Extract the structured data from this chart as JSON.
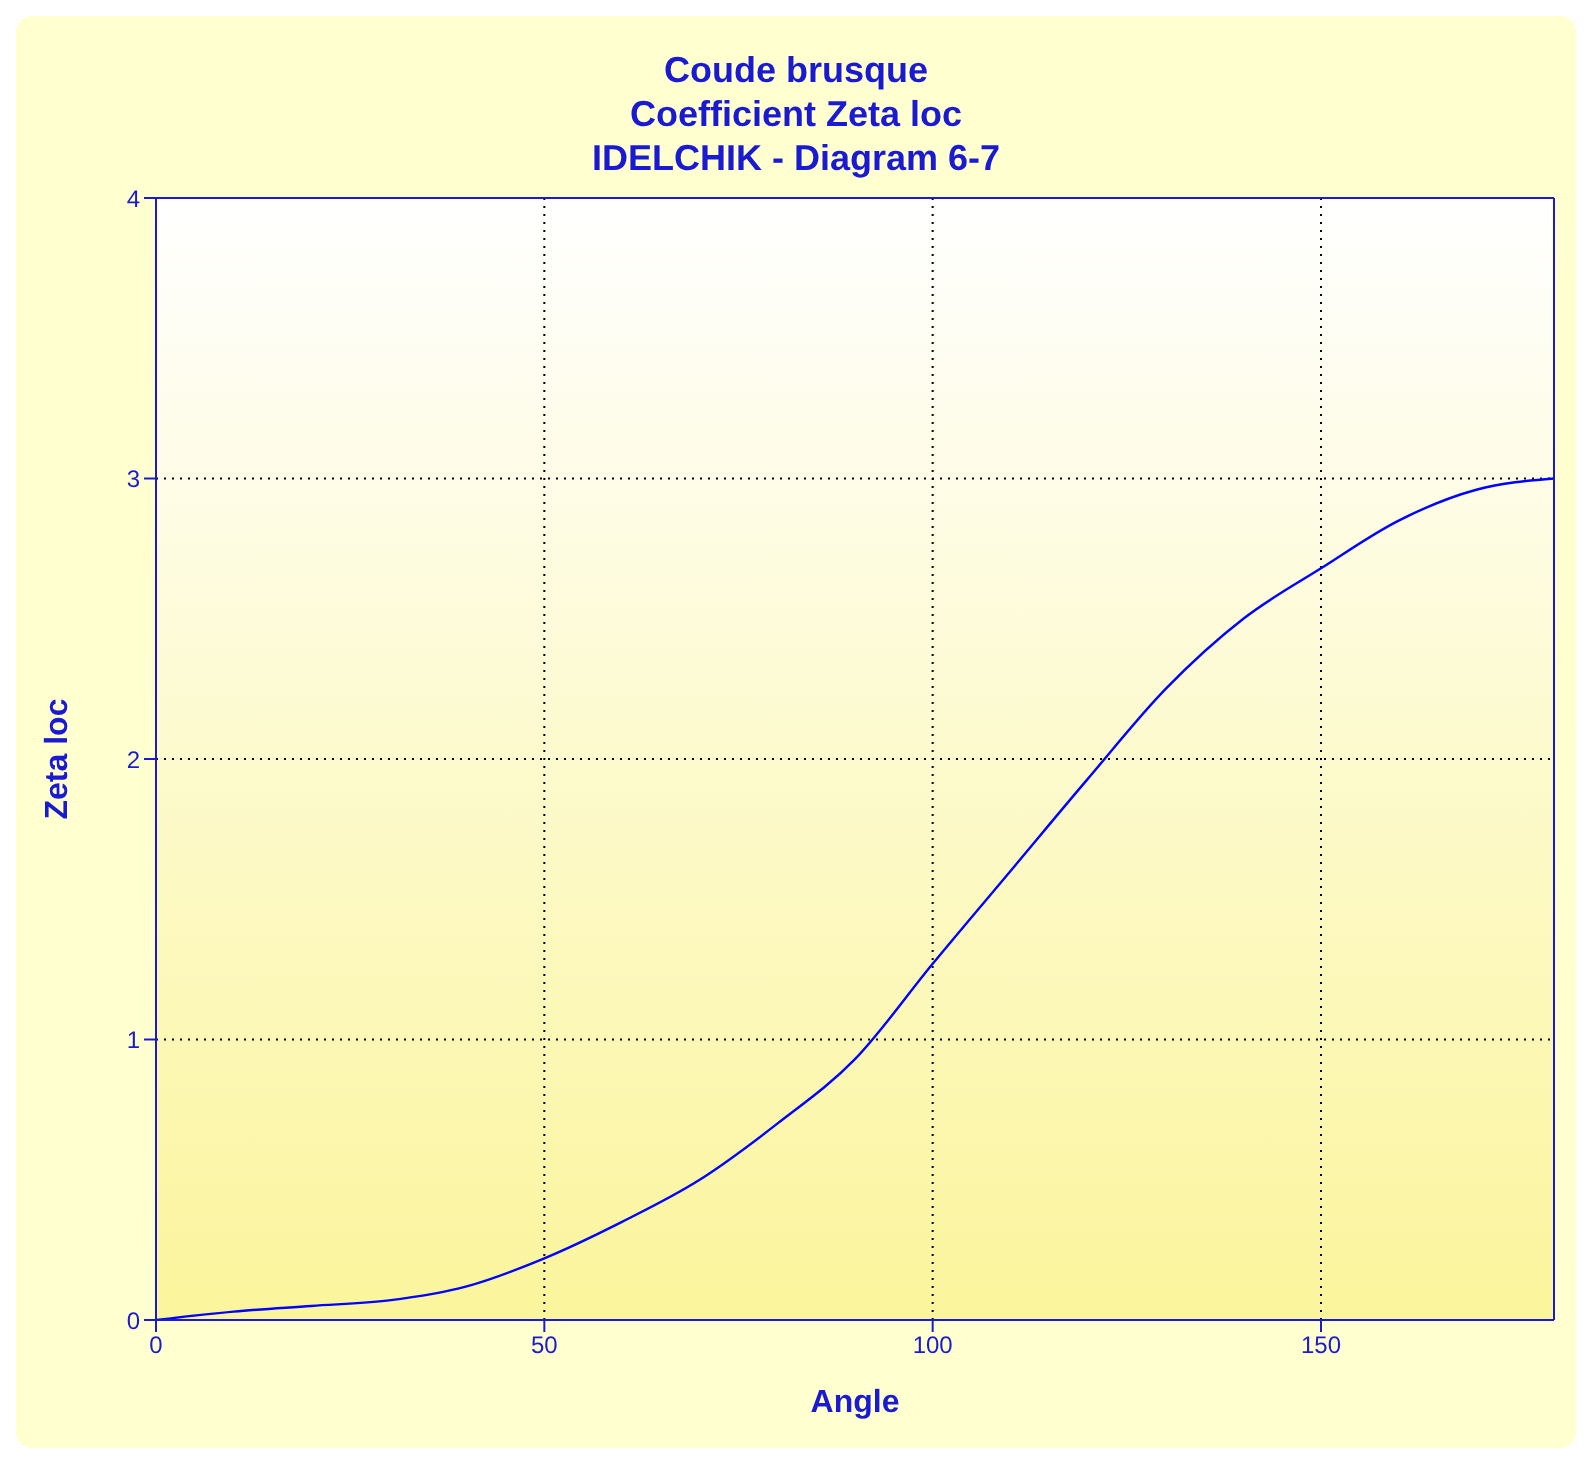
{
  "chart_data": {
    "type": "line",
    "title": "Coude brusque\nCoefficient Zeta loc\nIDELCHIK - Diagram 6-7",
    "xlabel": "Angle",
    "ylabel": "Zeta loc",
    "x": [
      0,
      10,
      20,
      30,
      40,
      50,
      60,
      70,
      80,
      90,
      100,
      110,
      120,
      130,
      140,
      150,
      160,
      170,
      180
    ],
    "series": [
      {
        "color": "#0000ff",
        "values": [
          0,
          0.03,
          0.05,
          0.07,
          0.12,
          0.22,
          0.35,
          0.5,
          0.7,
          0.93,
          1.27,
          1.6,
          1.93,
          2.25,
          2.5,
          2.68,
          2.85,
          2.96,
          3.0
        ]
      }
    ],
    "xlim": [
      0,
      180
    ],
    "xticks": [
      0,
      50,
      100,
      150
    ],
    "ylim": [
      0,
      4
    ],
    "yticks": [
      0,
      1,
      2,
      3,
      4
    ],
    "grid": true,
    "legend": false,
    "marker": "none",
    "line_style": "solid"
  }
}
